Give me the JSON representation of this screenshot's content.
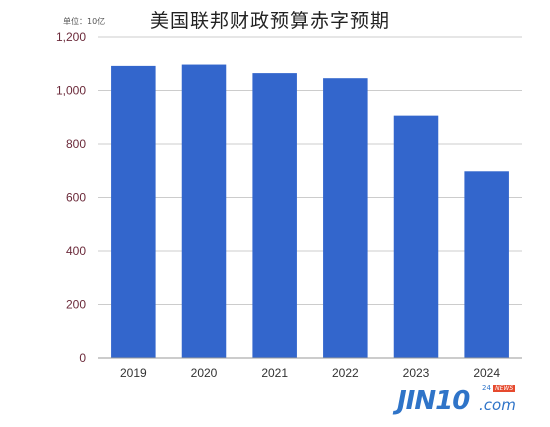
{
  "chart_data": {
    "type": "bar",
    "title": "美国联邦财政预算赤字预期",
    "unit_label": "单位：10亿",
    "categories": [
      "2019",
      "2020",
      "2021",
      "2022",
      "2023",
      "2024"
    ],
    "values": [
      1092,
      1097,
      1065,
      1046,
      906,
      698
    ],
    "ylim": [
      0,
      1200
    ],
    "yticks": [
      "0",
      "200",
      "400",
      "600",
      "800",
      "1,000",
      "1,200"
    ],
    "ytick_values": [
      0,
      200,
      400,
      600,
      800,
      1000,
      1200
    ],
    "grid": true,
    "colors": {
      "bar": "#3366cc",
      "grid": "#cccccc",
      "ytick_text": "#6b2a3a",
      "xtick_text": "#333333"
    }
  },
  "watermark": {
    "main": "JIN10",
    "suffix": ".com",
    "badge_num": "24",
    "badge_news": "NEWS"
  }
}
